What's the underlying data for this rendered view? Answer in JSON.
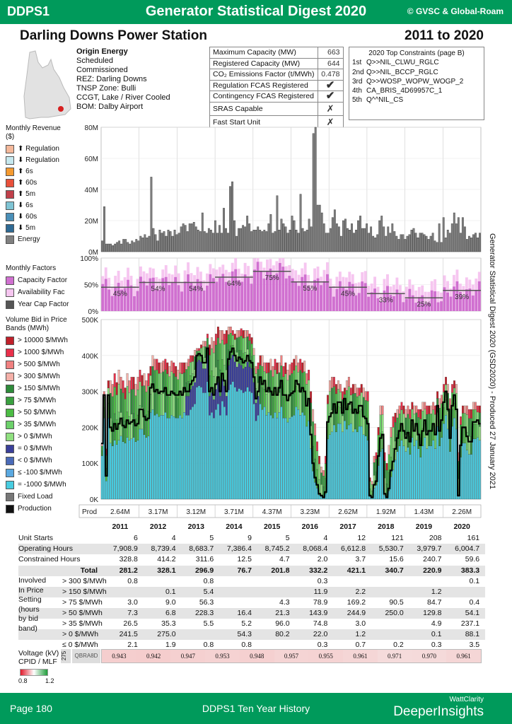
{
  "header": {
    "code": "DDPS1",
    "title": "Generator Statistical Digest 2020",
    "copyright": "© GVSC & Global-Roam"
  },
  "station": {
    "name": "Darling Downs Power Station",
    "period": "2011 to 2020"
  },
  "info": {
    "owner": "Origin Energy",
    "lines": [
      "Scheduled",
      "Commissioned",
      "REZ: Darling Downs",
      "TNSP Zone: Bulli",
      "CCGT, Lake / River Cooled",
      "BOM: Dalby Airport"
    ]
  },
  "props": [
    {
      "label": "Maximum Capacity (MW)",
      "value": "663",
      "type": "num"
    },
    {
      "label": "Registered Capacity (MW)",
      "value": "644",
      "type": "num"
    },
    {
      "label": "CO₂ Emissions Factor (t/MWh)",
      "value": "0.478",
      "type": "num"
    },
    {
      "label": "Regulation FCAS Registered",
      "value": "✔",
      "type": "yes"
    },
    {
      "label": "Contingency FCAS Registered",
      "value": "✔",
      "type": "yes"
    },
    {
      "label": "SRAS Capable",
      "value": "✗",
      "type": "no"
    },
    {
      "label": "Fast Start Unit",
      "value": "✗",
      "type": "no"
    }
  ],
  "constraints": {
    "title": "2020 Top Constraints (page B)",
    "items": [
      {
        "rank": "1st",
        "name": "Q>>NIL_CLWU_RGLC"
      },
      {
        "rank": "2nd",
        "name": "Q>>NIL_BCCP_RGLC"
      },
      {
        "rank": "3rd",
        "name": "Q>>WOSP_WOPW_WOGP_2"
      },
      {
        "rank": "4th",
        "name": "CA_BRIS_4D69957C_1"
      },
      {
        "rank": "5th",
        "name": "Q^^NIL_CS"
      }
    ]
  },
  "legend_revenue": {
    "title": "Monthly Revenue ($)",
    "items": [
      {
        "label": "⬆ Regulation",
        "color": "#f4b89a"
      },
      {
        "label": "⬇ Regulation",
        "color": "#c6e8ee"
      },
      {
        "label": "⬆ 6s",
        "color": "#f59a30"
      },
      {
        "label": "⬆ 60s",
        "color": "#e8503a"
      },
      {
        "label": "⬆ 5m",
        "color": "#c0404a"
      },
      {
        "label": "⬇ 6s",
        "color": "#7fc4d4"
      },
      {
        "label": "⬇ 60s",
        "color": "#4a8fb8"
      },
      {
        "label": "⬇ 5m",
        "color": "#2e6a94"
      },
      {
        "label": "Energy",
        "color": "#808080"
      }
    ]
  },
  "legend_factors": {
    "title": "Monthly Factors",
    "items": [
      {
        "label": "Capacity Factor",
        "color": "#d070d0"
      },
      {
        "label": "Availability Fac",
        "color": "#f6c6f0"
      },
      {
        "label": "Year Cap Factor",
        "color": "#555555"
      }
    ]
  },
  "legend_volume": {
    "title": "Volume Bid in Price Bands (MWh)",
    "items": [
      {
        "label": "> 10000 $/MWh",
        "color": "#c0202a"
      },
      {
        "label": "> 1000 $/MWh",
        "color": "#e8304a"
      },
      {
        "label": "> 500 $/MWh",
        "color": "#f08080"
      },
      {
        "label": "> 300 $/MWh",
        "color": "#f4b0a8"
      },
      {
        "label": "> 150 $/MWh",
        "color": "#2e8b3a"
      },
      {
        "label": "> 75 $/MWh",
        "color": "#3aa040"
      },
      {
        "label": "> 50 $/MWh",
        "color": "#4cbc44"
      },
      {
        "label": "> 35 $/MWh",
        "color": "#6cd06a"
      },
      {
        "label": "> 0 $/MWh",
        "color": "#90e080"
      },
      {
        "label": "= 0 $/MWh",
        "color": "#3a3f9a"
      },
      {
        "label": "< 0 $/MWh",
        "color": "#4a6ab8"
      },
      {
        "label": "≤ -100 $/MWh",
        "color": "#5aa8e0"
      },
      {
        "label": "= -1000 $/MWh",
        "color": "#48cce0"
      },
      {
        "label": "Fixed Load",
        "color": "#777777"
      },
      {
        "label": "Production",
        "color": "#111111"
      }
    ]
  },
  "side_note": "Generator Statistical Digest 2020 (GSD2020) - Produced 27 January 2021",
  "chart_data": [
    {
      "type": "bar",
      "title": "Monthly Revenue ($)",
      "ylim": [
        0,
        80
      ],
      "yticks": [
        "0M",
        "20M",
        "40M",
        "60M",
        "80M"
      ],
      "series": [
        {
          "name": "Energy",
          "values": [
            7,
            29,
            5,
            5,
            5,
            4,
            5,
            6,
            7,
            5,
            8,
            8,
            6,
            5,
            7,
            6,
            8,
            7,
            10,
            9,
            11,
            9,
            10,
            48,
            15,
            11,
            7,
            14,
            12,
            13,
            10,
            14,
            13,
            10,
            14,
            11,
            12,
            16,
            18,
            17,
            13,
            18,
            18,
            19,
            16,
            14,
            13,
            25,
            13,
            12,
            15,
            14,
            12,
            20,
            12,
            17,
            12,
            28,
            15,
            12,
            42,
            45,
            20,
            10,
            15,
            15,
            17,
            16,
            23,
            18,
            13,
            14,
            14,
            16,
            14,
            13,
            14,
            13,
            18,
            24,
            12,
            13,
            36,
            14,
            21,
            18,
            16,
            12,
            14,
            23,
            20,
            14,
            12,
            37,
            15,
            13,
            14,
            21,
            16,
            76,
            80,
            30,
            30,
            25,
            18,
            12,
            12,
            15,
            22,
            27,
            18,
            16,
            10,
            20,
            21,
            15,
            14,
            18,
            12,
            14,
            20,
            23,
            15,
            15,
            18,
            12,
            16,
            10,
            9,
            11,
            20,
            23,
            16,
            10,
            16,
            12,
            18,
            13,
            10,
            8,
            11,
            11,
            8,
            10,
            11,
            14,
            15,
            12,
            9,
            12,
            12,
            11,
            10,
            8,
            10,
            12,
            7,
            6,
            18,
            6,
            22,
            9,
            14,
            12,
            18,
            25,
            18,
            22,
            12,
            22,
            16,
            8,
            10,
            9,
            11,
            12,
            9,
            12
          ]
        }
      ]
    },
    {
      "type": "bar",
      "title": "Monthly Factors",
      "ylim": [
        0,
        100
      ],
      "yticks": [
        "0%",
        "50%",
        "100%"
      ],
      "year_cap_factors": [
        {
          "year": "2011",
          "value": 45,
          "label": "45%"
        },
        {
          "year": "2012",
          "value": 54,
          "label": "54%"
        },
        {
          "year": "2013",
          "value": 54,
          "label": "54%"
        },
        {
          "year": "2014",
          "value": 64,
          "label": "64%"
        },
        {
          "year": "2015",
          "value": 75,
          "label": "75%"
        },
        {
          "year": "2016",
          "value": 55,
          "label": "55%"
        },
        {
          "year": "2017",
          "value": 45,
          "label": "45%"
        },
        {
          "year": "2018",
          "value": 33,
          "label": "33%"
        },
        {
          "year": "2019",
          "value": 25,
          "label": "25%"
        },
        {
          "year": "2020",
          "value": 39,
          "label": "39%"
        }
      ]
    },
    {
      "type": "bar",
      "title": "Volume Bid in Price Bands (MWh)",
      "ylim": [
        0,
        500
      ],
      "yticks": [
        "0K",
        "100K",
        "200K",
        "300K",
        "400K",
        "500K"
      ],
      "production": [
        155,
        290,
        65,
        290,
        200,
        190,
        210,
        195,
        210,
        225,
        205,
        200,
        220,
        210,
        215,
        220,
        205,
        210,
        250,
        250,
        230,
        220,
        225,
        310,
        320,
        300,
        305,
        295,
        300,
        300,
        310,
        290,
        290,
        300,
        295,
        290,
        290,
        300,
        290,
        310,
        300,
        300,
        320,
        330,
        340,
        400,
        405,
        400,
        380,
        380,
        420,
        300,
        310,
        290,
        320,
        340,
        300,
        350,
        330,
        300,
        390,
        410,
        420,
        400,
        385,
        395,
        390,
        380,
        385,
        400,
        385,
        380,
        340,
        280,
        300,
        340,
        320,
        330,
        300,
        310,
        300,
        290,
        310,
        290,
        310,
        330,
        290,
        290,
        275,
        290,
        295,
        300,
        330,
        320,
        300,
        310,
        300,
        260,
        280,
        180,
        100,
        60,
        40,
        15,
        10,
        5,
        20,
        215,
        230,
        240,
        265,
        240,
        270,
        270,
        240,
        280,
        250,
        265,
        270,
        240,
        250,
        240,
        260,
        260,
        230,
        225,
        210,
        10,
        5,
        40,
        50,
        120,
        170,
        180,
        15,
        5,
        30,
        80,
        105,
        140,
        170,
        190,
        210,
        190,
        170,
        185,
        160,
        220,
        190,
        210,
        180,
        150,
        190,
        220,
        180,
        190,
        190,
        210,
        180,
        260,
        190,
        220,
        270,
        300,
        250,
        170,
        260,
        290,
        250,
        10,
        150,
        200,
        200,
        175,
        160,
        160,
        215,
        215,
        220,
        210
      ],
      "bid_total": [
        155,
        300,
        140,
        330,
        330,
        320,
        350,
        325,
        360,
        340,
        330,
        310,
        350,
        330,
        340,
        340,
        320,
        340,
        360,
        345,
        350,
        330,
        350,
        370,
        400,
        390,
        390,
        380,
        380,
        385,
        390,
        380,
        370,
        385,
        380,
        370,
        360,
        380,
        380,
        380,
        380,
        390,
        400,
        400,
        415,
        420,
        420,
        430,
        440,
        440,
        460,
        430,
        450,
        440,
        460,
        480,
        470,
        470,
        460,
        470,
        480,
        480,
        470,
        460,
        470,
        470,
        475,
        470,
        470,
        470,
        460,
        450,
        420,
        370,
        380,
        400,
        400,
        380,
        380,
        380,
        390,
        370,
        390,
        380,
        380,
        400,
        370,
        380,
        360,
        375,
        380,
        390,
        400,
        380,
        390,
        380,
        385,
        350,
        360,
        300,
        250,
        210,
        160,
        120,
        90,
        80,
        120,
        290,
        330,
        340,
        340,
        320,
        330,
        320,
        300,
        310,
        330,
        340,
        310,
        320,
        320,
        310,
        310,
        320,
        310,
        300,
        300,
        60,
        50,
        120,
        130,
        200,
        260,
        260,
        130,
        100,
        150,
        200,
        230,
        240,
        250,
        260,
        270,
        260,
        250,
        260,
        250,
        270,
        260,
        260,
        250,
        250,
        270,
        270,
        260,
        260,
        260,
        270,
        260,
        300,
        280,
        290,
        320,
        340,
        320,
        280,
        320,
        330,
        320,
        130,
        230,
        260,
        260,
        260,
        250,
        250,
        270,
        270,
        260,
        260
      ],
      "prod_totals": [
        "2.64M",
        "3.17M",
        "3.12M",
        "3.71M",
        "4.37M",
        "3.23M",
        "2.62M",
        "1.92M",
        "1.43M",
        "2.26M"
      ]
    }
  ],
  "years": [
    "2011",
    "2012",
    "2013",
    "2014",
    "2015",
    "2016",
    "2017",
    "2018",
    "2019",
    "2020"
  ],
  "stats": {
    "prod_label": "Prod",
    "rows": [
      {
        "label": "Unit Starts",
        "values": [
          "6",
          "4",
          "5",
          "9",
          "5",
          "4",
          "12",
          "121",
          "208",
          "161"
        ],
        "shaded": false
      },
      {
        "label": "Operating Hours",
        "values": [
          "7,908.9",
          "8,739.4",
          "8,683.7",
          "7,386.4",
          "8,745.2",
          "8,068.4",
          "6,612.8",
          "5,530.7",
          "3,979.7",
          "6,004.7"
        ],
        "shaded": true
      },
      {
        "label": "Constrained Hours",
        "values": [
          "328.8",
          "414.2",
          "311.6",
          "12.5",
          "4.7",
          "2.0",
          "3.7",
          "15.6",
          "240.7",
          "59.6"
        ],
        "shaded": false
      }
    ]
  },
  "involved": {
    "label_lines": [
      "Involved",
      "In Price",
      "Setting",
      "(hours",
      "by bid",
      "band)"
    ],
    "rows": [
      {
        "label": "Total",
        "values": [
          "281.2",
          "328.1",
          "296.9",
          "76.7",
          "201.8",
          "332.2",
          "421.1",
          "340.7",
          "220.9",
          "383.3"
        ],
        "bold": true
      },
      {
        "label": "> 300 $/MWh",
        "values": [
          "0.8",
          "",
          "0.8",
          "",
          "",
          "0.3",
          "",
          "",
          "",
          "0.1"
        ]
      },
      {
        "label": "> 150 $/MWh",
        "values": [
          "",
          "0.1",
          "5.4",
          "",
          "",
          "11.9",
          "2.2",
          "",
          "1.2",
          ""
        ]
      },
      {
        "label": "> 75 $/MWh",
        "values": [
          "3.0",
          "9.0",
          "56.3",
          "",
          "4.3",
          "78.9",
          "169.2",
          "90.5",
          "84.7",
          "0.4"
        ]
      },
      {
        "label": "> 50 $/MWh",
        "values": [
          "7.3",
          "6.8",
          "228.3",
          "16.4",
          "21.3",
          "143.9",
          "244.9",
          "250.0",
          "129.8",
          "54.1"
        ]
      },
      {
        "label": "> 35 $/MWh",
        "values": [
          "26.5",
          "35.3",
          "5.5",
          "5.2",
          "96.0",
          "74.8",
          "3.0",
          "",
          "4.9",
          "237.1"
        ]
      },
      {
        "label": "> 0 $/MWh",
        "values": [
          "241.5",
          "275.0",
          "",
          "54.3",
          "80.2",
          "22.0",
          "1.2",
          "",
          "0.1",
          "88.1"
        ]
      },
      {
        "label": "≤ 0 $/MWh",
        "values": [
          "2.1",
          "1.9",
          "0.8",
          "0.8",
          "",
          "0.3",
          "0.7",
          "0.2",
          "0.3",
          "3.5"
        ]
      }
    ]
  },
  "voltage": {
    "label_lines": [
      "Voltage (kV) /",
      "CPID / MLF"
    ],
    "kv": "275",
    "cpid": "QBRA8D",
    "mlf": [
      "0.943",
      "0.942",
      "0.947",
      "0.953",
      "0.948",
      "0.957",
      "0.955",
      "0.961",
      "0.971",
      "0.970",
      "0.961"
    ],
    "scale_min": "0.8",
    "scale_max": "1.2"
  },
  "footer": {
    "page": "Page 180",
    "history": "DDPS1 Ten Year History",
    "brand_top": "WattClarity",
    "brand_main": "DeeperInsights"
  }
}
